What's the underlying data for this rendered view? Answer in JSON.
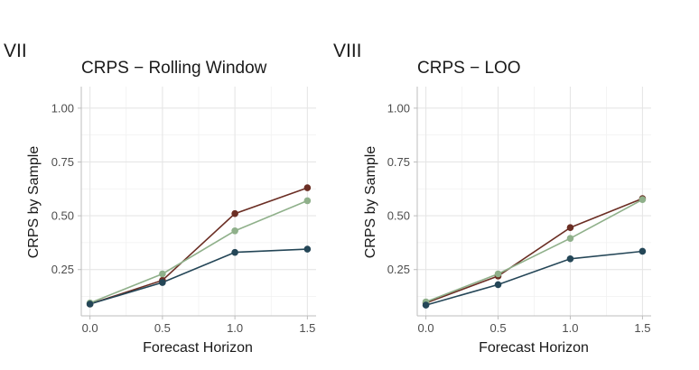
{
  "colors": {
    "series_dark_red": "#6b2e24",
    "series_sage": "#8fb08a",
    "series_navy": "#244657"
  },
  "chart_data": [
    {
      "panel_tag": "VII",
      "type": "line",
      "title": "CRPS − Rolling Window",
      "xlabel": "Forecast Horizon",
      "ylabel": "CRPS by Sample",
      "x": [
        0.0,
        0.5,
        1.0,
        1.5
      ],
      "x_tick_labels": [
        "0.0",
        "0.5",
        "1.0",
        "1.5"
      ],
      "y_ticks": [
        0.25,
        0.5,
        0.75,
        1.0
      ],
      "y_tick_labels": [
        "0.25",
        "0.50",
        "0.75",
        "1.00"
      ],
      "xlim": [
        -0.06,
        1.56
      ],
      "ylim": [
        0.035,
        1.1
      ],
      "grid": true,
      "legend": "none",
      "series": [
        {
          "color": "#6b2e24",
          "values": [
            0.09,
            0.2,
            0.51,
            0.63
          ]
        },
        {
          "color": "#8fb08a",
          "values": [
            0.095,
            0.23,
            0.43,
            0.57
          ]
        },
        {
          "color": "#244657",
          "values": [
            0.09,
            0.19,
            0.33,
            0.345
          ]
        }
      ]
    },
    {
      "panel_tag": "VIII",
      "type": "line",
      "title": "CRPS − LOO",
      "xlabel": "Forecast Horizon",
      "ylabel": "CRPS by Sample",
      "x": [
        0.0,
        0.5,
        1.0,
        1.5
      ],
      "x_tick_labels": [
        "0.0",
        "0.5",
        "1.0",
        "1.5"
      ],
      "y_ticks": [
        0.25,
        0.5,
        0.75,
        1.0
      ],
      "y_tick_labels": [
        "0.25",
        "0.50",
        "0.75",
        "1.00"
      ],
      "xlim": [
        -0.06,
        1.56
      ],
      "ylim": [
        0.035,
        1.1
      ],
      "grid": true,
      "legend": "none",
      "series": [
        {
          "color": "#6b2e24",
          "values": [
            0.095,
            0.22,
            0.445,
            0.58
          ]
        },
        {
          "color": "#8fb08a",
          "values": [
            0.1,
            0.23,
            0.395,
            0.575
          ]
        },
        {
          "color": "#244657",
          "values": [
            0.085,
            0.18,
            0.3,
            0.335
          ]
        }
      ]
    }
  ]
}
